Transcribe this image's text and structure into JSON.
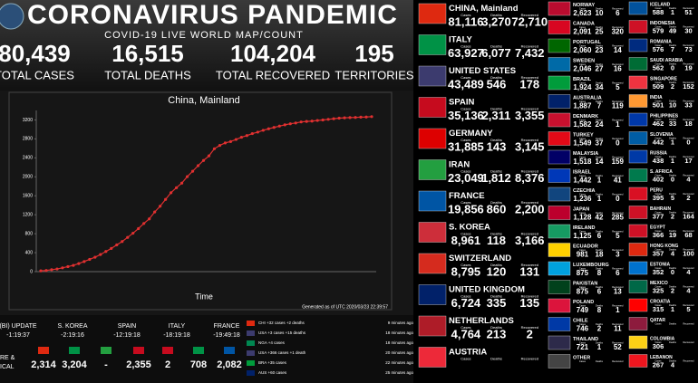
{
  "header": {
    "title": "CORONAVIRUS PANDEMIC",
    "subtitle": "COVID-19 LIVE WORLD MAP/COUNT",
    "stats": [
      {
        "value": "80,439",
        "label": "TOTAL CASES"
      },
      {
        "value": "16,515",
        "label": "TOTAL DEATHS"
      },
      {
        "value": "104,204",
        "label": "TOTAL RECOVERED"
      },
      {
        "value": "195",
        "label": "TERRITORIES"
      }
    ]
  },
  "chart_data": {
    "type": "line",
    "title": "China, Mainland",
    "x_label": "Time",
    "note": "Generated as of UTC 2020/03/23 22:39:57",
    "color": "#e03030",
    "categories": [
      null,
      null,
      null,
      null,
      null,
      null,
      null,
      null,
      null,
      null,
      null,
      null,
      null,
      null,
      null,
      null,
      null,
      null,
      null,
      null,
      null,
      null,
      null,
      null,
      null,
      null,
      null,
      null,
      null,
      null,
      null,
      null,
      null,
      null,
      null,
      null,
      null,
      null,
      null,
      null,
      null,
      null,
      null,
      null,
      null,
      null,
      null,
      null,
      null,
      null,
      null,
      null,
      null,
      null,
      null,
      null,
      null,
      null,
      null,
      null,
      null,
      null
    ],
    "values": [
      17,
      25,
      41,
      56,
      80,
      106,
      132,
      170,
      213,
      259,
      304,
      361,
      425,
      490,
      563,
      636,
      722,
      811,
      908,
      1016,
      1113,
      1259,
      1380,
      1523,
      1665,
      1770,
      1868,
      2004,
      2118,
      2236,
      2345,
      2442,
      2592,
      2663,
      2715,
      2744,
      2788,
      2835,
      2870,
      2912,
      2943,
      2981,
      3013,
      3042,
      3070,
      3097,
      3119,
      3136,
      3158,
      3169,
      3176,
      3189,
      3199,
      3213,
      3226,
      3237,
      3245,
      3249,
      3253,
      3259,
      3261,
      3270
    ],
    "ylim": [
      0,
      3400
    ],
    "yticks": [
      0,
      400,
      800,
      1200,
      1600,
      2000,
      2400,
      2800,
      3200
    ]
  },
  "ticker": {
    "updates": [
      {
        "name": "(BI) UPDATE",
        "time": "-1:19:37"
      },
      {
        "name": "S. KOREA",
        "time": "-2:19:16"
      },
      {
        "name": "SPAIN",
        "time": "-12:19:18"
      },
      {
        "name": "ITALY",
        "time": "-18:19:18"
      },
      {
        "name": "FRANCE",
        "time": "-19:49:18"
      }
    ],
    "side_labels": [
      "RE &",
      "ICAL"
    ],
    "totals": [
      {
        "value": "2,314",
        "flag": "#de2910"
      },
      {
        "value": "3,204",
        "flag": "#009246"
      },
      {
        "value": "-",
        "flag": "#239f40"
      },
      {
        "value": "2,355",
        "flag": "#c60b1e"
      },
      {
        "value": "2",
        "flag": "#c60b1e"
      },
      {
        "value": "708",
        "flag": "#009246"
      },
      {
        "value": "2,082",
        "flag": "#0055a4"
      }
    ],
    "log": [
      {
        "text": "CHI +32 cases +2 deaths",
        "time": "9 minutes ago",
        "flag": "#de2910"
      },
      {
        "text": "USA +3 cases +15 deaths",
        "time": "18 minutes ago",
        "flag": "#3c3b6e"
      },
      {
        "text": "NGA +4 cases",
        "time": "18 minutes ago",
        "flag": "#008751"
      },
      {
        "text": "USA +366 cases +1 death",
        "time": "20 minutes ago",
        "flag": "#3c3b6e"
      },
      {
        "text": "BRA +35 cases",
        "time": "22 minutes ago",
        "flag": "#009c3b"
      },
      {
        "text": "AUS +60 cases",
        "time": "25 minutes ago",
        "flag": "#012169"
      }
    ]
  },
  "countries": {
    "col_labels": [
      "Cases",
      "Deaths",
      "Recovered"
    ],
    "main": [
      {
        "name": "CHINA, Mainland",
        "cases": "81,116",
        "deaths": "3,270",
        "recovered": "72,710",
        "flag": "#de2910"
      },
      {
        "name": "ITALY",
        "cases": "63,927",
        "deaths": "6,077",
        "recovered": "7,432",
        "flag": "#009246"
      },
      {
        "name": "UNITED STATES",
        "cases": "43,489",
        "deaths": "546",
        "recovered": "178",
        "flag": "#3c3b6e"
      },
      {
        "name": "SPAIN",
        "cases": "35,136",
        "deaths": "2,311",
        "recovered": "3,355",
        "flag": "#c60b1e"
      },
      {
        "name": "GERMANY",
        "cases": "31,885",
        "deaths": "143",
        "recovered": "3,145",
        "flag": "#dd0000"
      },
      {
        "name": "IRAN",
        "cases": "23,049",
        "deaths": "1,812",
        "recovered": "8,376",
        "flag": "#239f40"
      },
      {
        "name": "FRANCE",
        "cases": "19,856",
        "deaths": "860",
        "recovered": "2,200",
        "flag": "#0055a4"
      },
      {
        "name": "S. KOREA",
        "cases": "8,961",
        "deaths": "118",
        "recovered": "3,166",
        "flag": "#cd2e3a"
      },
      {
        "name": "SWITZERLAND",
        "cases": "8,795",
        "deaths": "120",
        "recovered": "131",
        "flag": "#d52b1e"
      },
      {
        "name": "UNITED KINGDOM",
        "cases": "6,724",
        "deaths": "335",
        "recovered": "135",
        "flag": "#012169"
      },
      {
        "name": "NETHERLANDS",
        "cases": "4,764",
        "deaths": "213",
        "recovered": "2",
        "flag": "#ae1c28"
      },
      {
        "name": "AUSTRIA",
        "cases": "",
        "deaths": "",
        "recovered": "",
        "flag": "#ed2939"
      }
    ],
    "second": [
      {
        "name": "NORWAY",
        "cases": "2,623",
        "deaths": "10",
        "recovered": "6",
        "flag": "#ba0c2f"
      },
      {
        "name": "CANADA",
        "cases": "2,091",
        "deaths": "25",
        "recovered": "320",
        "flag": "#d80621"
      },
      {
        "name": "PORTUGAL",
        "cases": "2,060",
        "deaths": "23",
        "recovered": "14",
        "flag": "#006600"
      },
      {
        "name": "SWEDEN",
        "cases": "2,046",
        "deaths": "27",
        "recovered": "16",
        "flag": "#006aa7"
      },
      {
        "name": "BRAZIL",
        "cases": "1,924",
        "deaths": "34",
        "recovered": "5",
        "flag": "#009c3b"
      },
      {
        "name": "AUSTRALIA",
        "cases": "1,887",
        "deaths": "7",
        "recovered": "119",
        "flag": "#012169"
      },
      {
        "name": "DENMARK",
        "cases": "1,582",
        "deaths": "24",
        "recovered": "1",
        "flag": "#c8102e"
      },
      {
        "name": "TURKEY",
        "cases": "1,549",
        "deaths": "37",
        "recovered": "0",
        "flag": "#e30a17"
      },
      {
        "name": "MALAYSIA",
        "cases": "1,518",
        "deaths": "14",
        "recovered": "159",
        "flag": "#010066"
      },
      {
        "name": "ISRAEL",
        "cases": "1,442",
        "deaths": "1",
        "recovered": "41",
        "flag": "#0038b8"
      },
      {
        "name": "CZECHIA",
        "cases": "1,236",
        "deaths": "1",
        "recovered": "0",
        "flag": "#11457e"
      },
      {
        "name": "JAPAN",
        "cases": "1,128",
        "deaths": "42",
        "recovered": "285",
        "flag": "#bc002d"
      },
      {
        "name": "IRELAND",
        "cases": "1,125",
        "deaths": "6",
        "recovered": "5",
        "flag": "#169b62"
      },
      {
        "name": "ECUADOR",
        "cases": "981",
        "deaths": "18",
        "recovered": "3",
        "flag": "#ffd100"
      },
      {
        "name": "LUXEMBOURG",
        "cases": "875",
        "deaths": "8",
        "recovered": "6",
        "flag": "#00a1de"
      },
      {
        "name": "PAKISTAN",
        "cases": "875",
        "deaths": "6",
        "recovered": "13",
        "flag": "#01411c"
      },
      {
        "name": "POLAND",
        "cases": "749",
        "deaths": "8",
        "recovered": "1",
        "flag": "#dc143c"
      },
      {
        "name": "CHILE",
        "cases": "746",
        "deaths": "2",
        "recovered": "11",
        "flag": "#0039a6"
      },
      {
        "name": "THAILAND",
        "cases": "721",
        "deaths": "1",
        "recovered": "52",
        "flag": "#2d2a4a"
      },
      {
        "name": "OTHER",
        "cases": "",
        "deaths": "",
        "recovered": "",
        "flag": "#444"
      }
    ],
    "third": [
      {
        "name": "ICELAND",
        "cases": "588",
        "deaths": "1",
        "recovered": "51",
        "flag": "#02529c"
      },
      {
        "name": "INDONESIA",
        "cases": "579",
        "deaths": "49",
        "recovered": "30",
        "flag": "#ce1126"
      },
      {
        "name": "ROMANIA",
        "cases": "576",
        "deaths": "7",
        "recovered": "73",
        "flag": "#002b7f"
      },
      {
        "name": "SAUDI ARABIA",
        "cases": "562",
        "deaths": "0",
        "recovered": "19",
        "flag": "#006c35"
      },
      {
        "name": "SINGAPORE",
        "cases": "509",
        "deaths": "2",
        "recovered": "152",
        "flag": "#ef3340"
      },
      {
        "name": "INDIA",
        "cases": "501",
        "deaths": "10",
        "recovered": "33",
        "flag": "#ff9933"
      },
      {
        "name": "PHILIPPINES",
        "cases": "462",
        "deaths": "33",
        "recovered": "18",
        "flag": "#0038a8"
      },
      {
        "name": "SLOVENIA",
        "cases": "442",
        "deaths": "1",
        "recovered": "0",
        "flag": "#005da4"
      },
      {
        "name": "RUSSIA",
        "cases": "438",
        "deaths": "1",
        "recovered": "17",
        "flag": "#0039a6"
      },
      {
        "name": "S. AFRICA",
        "cases": "402",
        "deaths": "0",
        "recovered": "4",
        "flag": "#007a4d"
      },
      {
        "name": "PERU",
        "cases": "395",
        "deaths": "5",
        "recovered": "2",
        "flag": "#d91023"
      },
      {
        "name": "BAHRAIN",
        "cases": "377",
        "deaths": "2",
        "recovered": "164",
        "flag": "#ce1126"
      },
      {
        "name": "EGYPT",
        "cases": "366",
        "deaths": "19",
        "recovered": "68",
        "flag": "#ce1126"
      },
      {
        "name": "HONG KONG",
        "cases": "357",
        "deaths": "4",
        "recovered": "100",
        "flag": "#de2910"
      },
      {
        "name": "ESTONIA",
        "cases": "352",
        "deaths": "0",
        "recovered": "4",
        "flag": "#0072ce"
      },
      {
        "name": "MEXICO",
        "cases": "325",
        "deaths": "2",
        "recovered": "4",
        "flag": "#006847"
      },
      {
        "name": "CROATIA",
        "cases": "315",
        "deaths": "1",
        "recovered": "5",
        "flag": "#ff0000"
      },
      {
        "name": "QATAR",
        "cases": "",
        "deaths": "",
        "recovered": "",
        "flag": "#8d1b3d"
      },
      {
        "name": "COLOMBIA",
        "cases": "306",
        "deaths": "",
        "recovered": "",
        "flag": "#fcd116"
      },
      {
        "name": "LEBANON",
        "cases": "267",
        "deaths": "4",
        "recovered": "",
        "flag": "#ee161f"
      }
    ]
  }
}
